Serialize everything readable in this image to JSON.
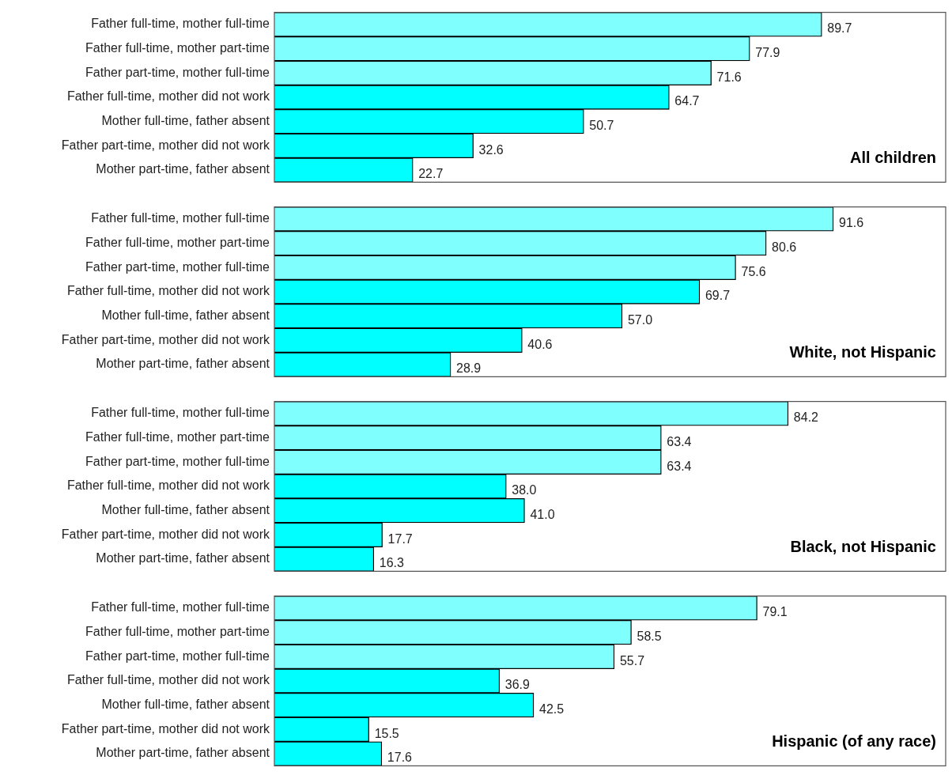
{
  "chart_data": [
    {
      "type": "bar",
      "orientation": "horizontal",
      "title": "All children",
      "categories": [
        "Father full-time, mother full-time",
        "Father full-time, mother part-time",
        "Father part-time, mother full-time",
        "Father full-time, mother did not work",
        "Mother full-time, father absent",
        "Father part-time, mother did not work",
        "Mother part-time, father absent"
      ],
      "values": [
        89.7,
        77.9,
        71.6,
        64.7,
        50.7,
        32.6,
        22.7
      ],
      "value_labels": [
        "89.7",
        "77.9",
        "71.6",
        "64.7",
        "50.7",
        "32.6",
        "22.7"
      ],
      "colors": [
        "#80ffff",
        "#80ffff",
        "#80ffff",
        "#00ffff",
        "#00ffff",
        "#00ffff",
        "#00ffff"
      ],
      "xlim": [
        0,
        110
      ],
      "tick_labels": "y",
      "grid": false,
      "legend": false
    },
    {
      "type": "bar",
      "orientation": "horizontal",
      "title": "White, not Hispanic",
      "categories": [
        "Father full-time, mother full-time",
        "Father full-time, mother part-time",
        "Father part-time, mother full-time",
        "Father full-time, mother did not work",
        "Mother full-time, father absent",
        "Father part-time, mother did not work",
        "Mother part-time, father absent"
      ],
      "values": [
        91.6,
        80.6,
        75.6,
        69.7,
        57,
        40.6,
        28.9
      ],
      "value_labels": [
        "91.6",
        "80.6",
        "75.6",
        "69.7",
        "57.0",
        "40.6",
        "28.9"
      ],
      "colors": [
        "#80ffff",
        "#80ffff",
        "#80ffff",
        "#00ffff",
        "#00ffff",
        "#00ffff",
        "#00ffff"
      ],
      "xlim": [
        0,
        110
      ],
      "tick_labels": "y",
      "grid": false,
      "legend": false
    },
    {
      "type": "bar",
      "orientation": "horizontal",
      "title": "Black, not Hispanic",
      "categories": [
        "Father full-time, mother full-time",
        "Father full-time, mother part-time",
        "Father part-time, mother full-time",
        "Father full-time, mother did not work",
        "Mother full-time, father absent",
        "Father part-time, mother did not work",
        "Mother part-time, father absent"
      ],
      "values": [
        84.2,
        63.4,
        63.4,
        38,
        41,
        17.7,
        16.3
      ],
      "value_labels": [
        "84.2",
        "63.4",
        "63.4",
        "38.0",
        "41.0",
        "17.7",
        "16.3"
      ],
      "colors": [
        "#80ffff",
        "#80ffff",
        "#80ffff",
        "#00ffff",
        "#00ffff",
        "#00ffff",
        "#00ffff"
      ],
      "xlim": [
        0,
        110
      ],
      "tick_labels": "y",
      "grid": false,
      "legend": false
    },
    {
      "type": "bar",
      "orientation": "horizontal",
      "title": "Hispanic (of any race)",
      "categories": [
        "Father full-time, mother full-time",
        "Father full-time, mother part-time",
        "Father part-time, mother full-time",
        "Father full-time, mother did not work",
        "Mother full-time, father absent",
        "Father part-time, mother did not work",
        "Mother part-time, father absent"
      ],
      "values": [
        79.1,
        58.5,
        55.7,
        36.9,
        42.5,
        15.5,
        17.6
      ],
      "value_labels": [
        "79.1",
        "58.5",
        "55.7",
        "36.9",
        "42.5",
        "15.5",
        "17.6"
      ],
      "colors": [
        "#80ffff",
        "#80ffff",
        "#80ffff",
        "#00ffff",
        "#00ffff",
        "#00ffff",
        "#00ffff"
      ],
      "xlim": [
        0,
        110
      ],
      "tick_labels": "y",
      "grid": false,
      "legend": false
    }
  ]
}
